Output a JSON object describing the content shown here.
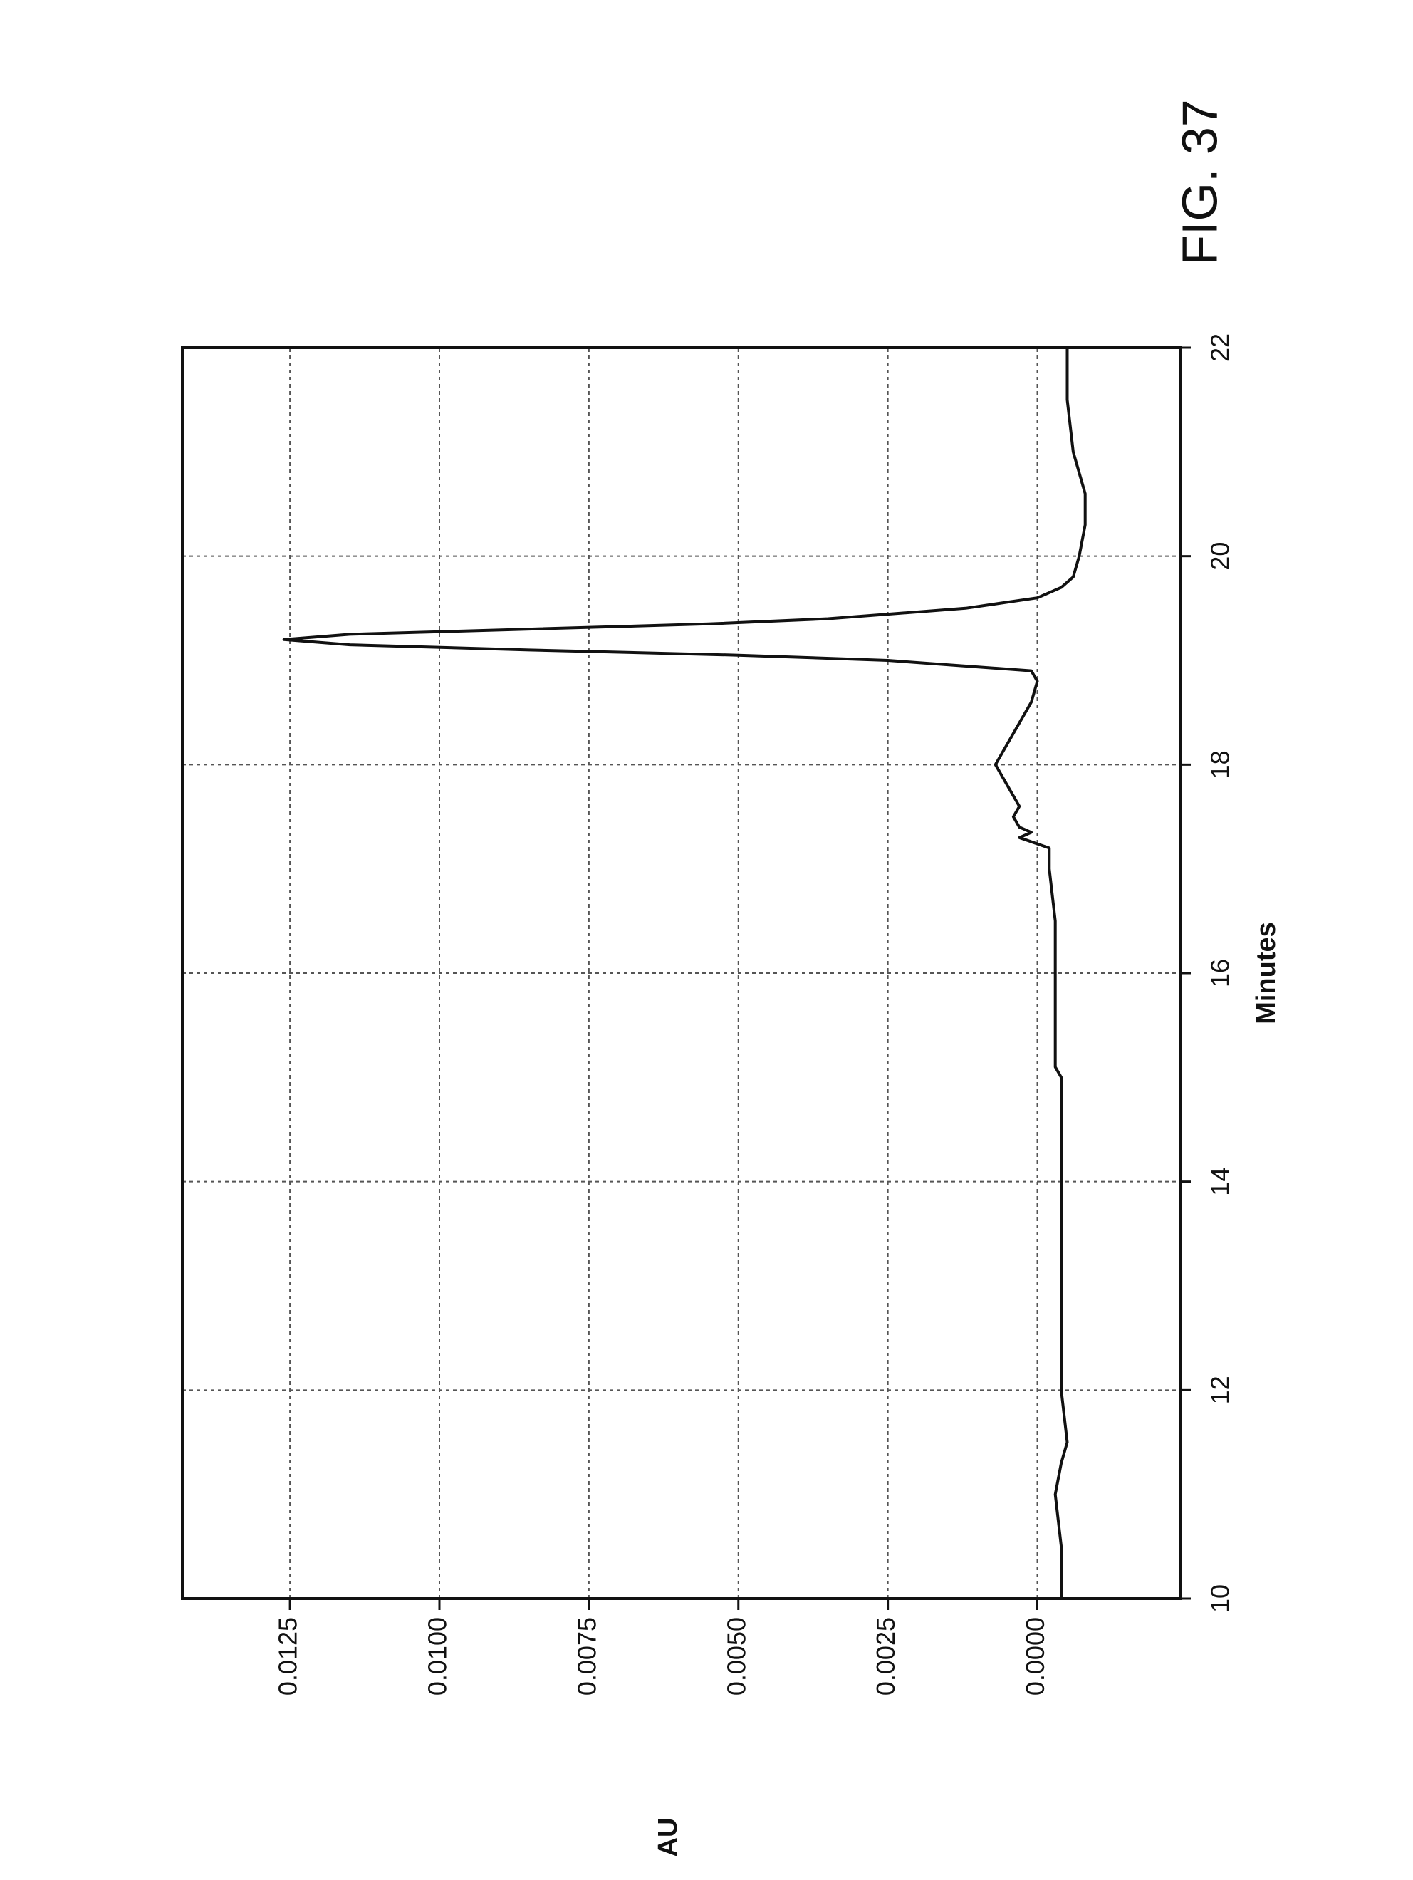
{
  "chart_data": {
    "type": "line",
    "figure_label": "FIG. 37",
    "x_label": "Minutes",
    "y_label": "AU",
    "xlim": [
      10,
      22
    ],
    "xticks": [
      10,
      12,
      14,
      16,
      18,
      20,
      22
    ],
    "ylim": [
      -0.0024,
      0.0143
    ],
    "yticks": [
      {
        "value": 0,
        "label": "0.0000"
      },
      0.0025,
      {
        "value": 0.005,
        "label": "0.0050"
      },
      0.0075,
      {
        "value": 0.01,
        "label": "0.0100"
      },
      0.0125
    ],
    "grid": true,
    "series": [
      {
        "color": "#111111",
        "x": [
          10,
          10.5,
          11,
          11.3,
          11.5,
          12,
          12.5,
          13,
          13.5,
          14,
          14.5,
          15,
          15.1,
          15.5,
          16,
          16.5,
          17,
          17.2,
          17.3,
          17.35,
          17.4,
          17.5,
          17.6,
          17.8,
          18,
          18.2,
          18.4,
          18.6,
          18.8,
          18.9,
          19.0,
          19.05,
          19.1,
          19.15,
          19.2,
          19.25,
          19.3,
          19.35,
          19.4,
          19.5,
          19.6,
          19.7,
          19.8,
          20,
          20.3,
          20.6,
          21,
          21.5,
          22
        ],
        "values": [
          -0.0004,
          -0.0004,
          -0.0003,
          -0.0004,
          -0.0005,
          -0.0004,
          -0.0004,
          -0.0004,
          -0.0004,
          -0.0004,
          -0.0004,
          -0.0004,
          -0.0003,
          -0.0003,
          -0.0003,
          -0.0003,
          -0.0002,
          -0.0002,
          0.0003,
          0.0001,
          0.0003,
          0.0004,
          0.0003,
          0.0005,
          0.0007,
          0.0005,
          0.0003,
          0.0001,
          0.0,
          0.0001,
          0.0025,
          0.005,
          0.0085,
          0.0115,
          0.0126,
          0.0115,
          0.0085,
          0.0055,
          0.0035,
          0.0012,
          0.0,
          -0.0004,
          -0.0006,
          -0.0007,
          -0.0008,
          -0.0008,
          -0.0006,
          -0.0005,
          -0.0005
        ]
      }
    ]
  }
}
